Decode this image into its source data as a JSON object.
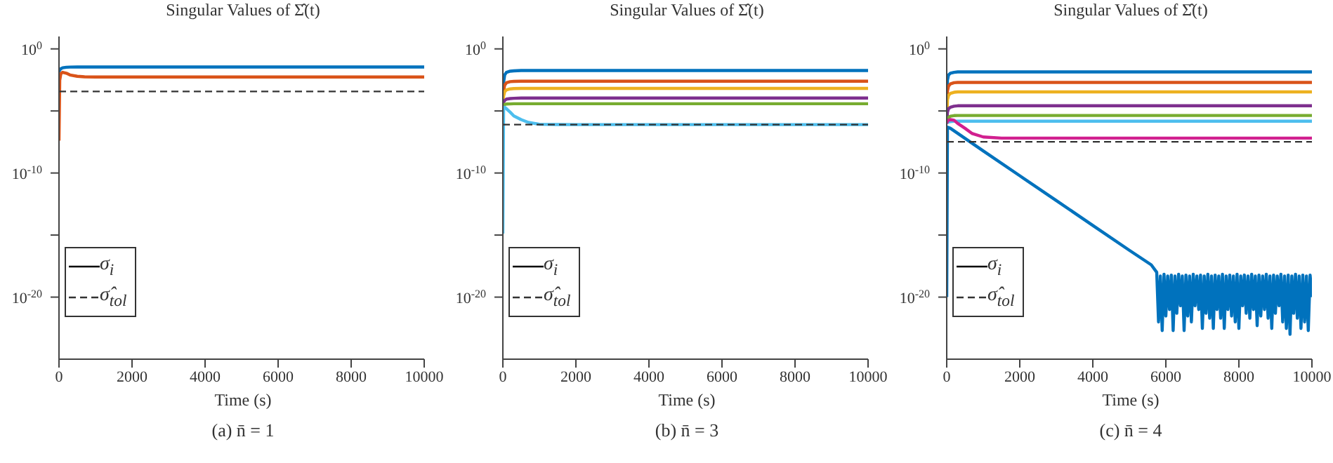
{
  "chart_data": [
    {
      "type": "line",
      "title": "Singular Values of Σ̂(t)",
      "xlabel": "Time (s)",
      "annotations": [
        "(a) n̄ = 1"
      ],
      "log": true,
      "legend": "bottom left",
      "xlim": [
        0,
        10000
      ],
      "xticks": [
        0,
        2000,
        4000,
        6000,
        8000,
        10000
      ],
      "ylim": [
        1e-25,
        10
      ],
      "yticks": [
        {
          "value": 1,
          "label": "10$^{0}$"
        },
        {
          "value": 1e-05,
          "label": null
        },
        {
          "value": 1e-10,
          "label": "10$^{-10}$"
        },
        {
          "value": 1e-15,
          "label": null
        },
        {
          "value": 1e-20,
          "label": "10$^{-20}$"
        }
      ],
      "x": [
        0,
        20,
        50,
        100,
        200,
        300,
        500,
        700,
        1000,
        1500,
        2000,
        4000,
        6000,
        8000,
        10000
      ],
      "series": [
        {
          "color": "#0072bd",
          "values": [
            0.014,
            0.02,
            0.025,
            0.03,
            0.033,
            0.034,
            0.035,
            0.035,
            0.035,
            0.035,
            0.035,
            0.035,
            0.035,
            0.035,
            0.035
          ]
        },
        {
          "color": "#d95319",
          "values": [
            4e-08,
            0.003,
            0.01,
            0.013,
            0.011,
            0.008,
            0.0062,
            0.0056,
            0.0054,
            0.0054,
            0.0054,
            0.0054,
            0.0054,
            0.0054,
            0.0054
          ]
        },
        {
          "name": "σ$_{i}$",
          "color": "#000000",
          "values": [
            null,
            null,
            null,
            null,
            null,
            null,
            null,
            null,
            null,
            null,
            null,
            null,
            null,
            null,
            null
          ]
        },
        {
          "name": "σ̂$_{tol}$",
          "color": "#333333",
          "line_style": "dashed",
          "values": [
            0.00037,
            0.00037,
            0.00037,
            0.00037,
            0.00037,
            0.00037,
            0.00037,
            0.00037,
            0.00037,
            0.00037,
            0.00037,
            0.00037,
            0.00037,
            0.00037,
            0.00037
          ]
        }
      ]
    },
    {
      "type": "line",
      "title": "Singular Values of Σ̂(t)",
      "xlabel": "Time (s)",
      "annotations": [
        "(b) n̄ = 3"
      ],
      "log": true,
      "legend": "bottom left",
      "xlim": [
        0,
        10000
      ],
      "xticks": [
        0,
        2000,
        4000,
        6000,
        8000,
        10000
      ],
      "ylim": [
        1e-25,
        10
      ],
      "yticks": [
        {
          "value": 1,
          "label": "10$^{0}$"
        },
        {
          "value": 1e-05,
          "label": null
        },
        {
          "value": 1e-10,
          "label": "10$^{-10}$"
        },
        {
          "value": 1e-15,
          "label": null
        },
        {
          "value": 1e-20,
          "label": "10$^{-20}$"
        }
      ],
      "x": [
        0,
        20,
        50,
        100,
        200,
        300,
        500,
        700,
        1000,
        1500,
        2000,
        4000,
        6000,
        8000,
        10000
      ],
      "series": [
        {
          "color": "#0072bd",
          "values": [
            3e-05,
            0.002,
            0.008,
            0.013,
            0.016,
            0.017,
            0.018,
            0.018,
            0.018,
            0.018,
            0.018,
            0.018,
            0.018,
            0.018,
            0.018
          ]
        },
        {
          "color": "#d95319",
          "values": [
            3e-05,
            0.0004,
            0.0012,
            0.0019,
            0.0023,
            0.0024,
            0.0025,
            0.0025,
            0.0025,
            0.0025,
            0.0025,
            0.0025,
            0.0025,
            0.0025,
            0.0025
          ]
        },
        {
          "color": "#edb120",
          "values": [
            3e-05,
            0.00015,
            0.00035,
            0.0005,
            0.0006,
            0.00064,
            0.00066,
            0.00066,
            0.00066,
            0.00066,
            0.00066,
            0.00066,
            0.00066,
            0.00066,
            0.00066
          ]
        },
        {
          "color": "#7e2f8e",
          "values": [
            3e-05,
            5e-05,
            7e-05,
            9e-05,
            0.0001,
            0.000105,
            0.00011,
            0.00011,
            0.00011,
            0.00011,
            0.00011,
            0.00011,
            0.00011,
            0.00011,
            0.00011
          ]
        },
        {
          "color": "#77ac30",
          "values": [
            3e-05,
            3.2e-05,
            3.4e-05,
            3.6e-05,
            3.7e-05,
            3.8e-05,
            3.8e-05,
            3.8e-05,
            3.8e-05,
            3.8e-05,
            3.8e-05,
            3.8e-05,
            3.8e-05,
            3.8e-05,
            3.8e-05
          ]
        },
        {
          "color": "#4dbeee",
          "values": [
            1.3e-15,
            2e-05,
            2e-05,
            1.5e-05,
            8e-06,
            4e-06,
            2e-06,
            1.2e-06,
            8.5e-07,
            8e-07,
            7.9e-07,
            7.9e-07,
            7.9e-07,
            7.9e-07,
            7.9e-07
          ]
        },
        {
          "name": "σ$_{i}$",
          "color": "#000000",
          "values": [
            null,
            null,
            null,
            null,
            null,
            null,
            null,
            null,
            null,
            null,
            null,
            null,
            null,
            null,
            null
          ]
        },
        {
          "name": "σ̂$_{tol}$",
          "color": "#333333",
          "line_style": "dashed",
          "values": [
            8e-07,
            8e-07,
            8e-07,
            8e-07,
            8e-07,
            8e-07,
            8e-07,
            8e-07,
            8e-07,
            8e-07,
            8e-07,
            8e-07,
            8e-07,
            8e-07,
            8e-07
          ]
        }
      ]
    },
    {
      "type": "line",
      "title": "Singular Values of Σ̂(t)",
      "xlabel": "Time (s)",
      "annotations": [
        "(c) n̄ = 4"
      ],
      "log": true,
      "legend": "bottom left",
      "xlim": [
        0,
        10000
      ],
      "xticks": [
        0,
        2000,
        4000,
        6000,
        8000,
        10000
      ],
      "ylim": [
        1e-25,
        10
      ],
      "yticks": [
        {
          "value": 1,
          "label": "10$^{0}$"
        },
        {
          "value": 1e-05,
          "label": null
        },
        {
          "value": 1e-10,
          "label": "10$^{-10}$"
        },
        {
          "value": 1e-15,
          "label": null
        },
        {
          "value": 1e-20,
          "label": "10$^{-20}$"
        }
      ],
      "x": [
        0,
        20,
        50,
        100,
        200,
        300,
        500,
        700,
        1000,
        1500,
        2000,
        4000,
        6000,
        8000,
        10000
      ],
      "series": [
        {
          "color": "#0072bd",
          "values": [
            1e-06,
            0.003,
            0.008,
            0.011,
            0.013,
            0.014,
            0.014,
            0.014,
            0.014,
            0.014,
            0.014,
            0.014,
            0.014,
            0.014,
            0.014
          ]
        },
        {
          "color": "#d95319",
          "values": [
            1e-06,
            0.0004,
            0.001,
            0.0015,
            0.0019,
            0.002,
            0.002,
            0.002,
            0.002,
            0.002,
            0.002,
            0.002,
            0.002,
            0.002,
            0.002
          ]
        },
        {
          "color": "#edb120",
          "values": [
            1e-06,
            8e-05,
            0.00018,
            0.00026,
            0.00032,
            0.00034,
            0.00034,
            0.00034,
            0.00034,
            0.00034,
            0.00034,
            0.00034,
            0.00034,
            0.00034,
            0.00034
          ]
        },
        {
          "color": "#7e2f8e",
          "values": [
            1e-06,
            8e-06,
            1.5e-05,
            2e-05,
            2.4e-05,
            2.6e-05,
            2.6e-05,
            2.6e-05,
            2.6e-05,
            2.6e-05,
            2.6e-05,
            2.6e-05,
            2.6e-05,
            2.6e-05,
            2.6e-05
          ]
        },
        {
          "color": "#77ac30",
          "values": [
            1e-06,
            2e-06,
            3e-06,
            3.8e-06,
            4.2e-06,
            4.3e-06,
            4.3e-06,
            4.3e-06,
            4.3e-06,
            4.3e-06,
            4.3e-06,
            4.3e-06,
            4.3e-06,
            4.3e-06,
            4.3e-06
          ]
        },
        {
          "color": "#4dbeee",
          "values": [
            1e-06,
            1.2e-06,
            1.3e-06,
            1.4e-06,
            1.5e-06,
            1.5e-06,
            1.5e-06,
            1.5e-06,
            1.5e-06,
            1.5e-06,
            1.5e-06,
            1.5e-06,
            1.5e-06,
            1.5e-06,
            1.5e-06
          ]
        },
        {
          "color": "#d1208f",
          "values": [
            1e-06,
            1.5e-06,
            1.8e-06,
            2e-06,
            1.8e-06,
            1e-06,
            4e-07,
            1.5e-07,
            8e-08,
            6.5e-08,
            6.5e-08,
            6.5e-08,
            6.5e-08,
            6.5e-08,
            6.5e-08
          ]
        },
        {
          "color": "#0072bd",
          "x": [
            0,
            20,
            100,
            1000,
            2000,
            3000,
            4000,
            5000,
            5600,
            5750,
            5800,
            5850,
            5900,
            5950,
            6000,
            6050,
            6100,
            6150,
            6200,
            6250,
            6300,
            6350,
            6400,
            6450,
            6500,
            6550,
            6600,
            6650,
            6700,
            6750,
            6800,
            6850,
            6900,
            6950,
            7000,
            7050,
            7100,
            7150,
            7200,
            7250,
            7300,
            7350,
            7400,
            7450,
            7500,
            7550,
            7600,
            7650,
            7700,
            7750,
            7800,
            7850,
            7900,
            7950,
            8000,
            8050,
            8100,
            8150,
            8200,
            8250,
            8300,
            8350,
            8400,
            8450,
            8500,
            8550,
            8600,
            8650,
            8700,
            8750,
            8800,
            8850,
            8900,
            8950,
            9000,
            9050,
            9100,
            9150,
            9200,
            9250,
            9300,
            9350,
            9400,
            9450,
            9500,
            9550,
            9600,
            9650,
            9700,
            9750,
            9800,
            9850,
            9900,
            9950,
            10000
          ],
          "values": [
            1e-20,
            5e-07,
            4e-07,
            6e-09,
            6e-11,
            6e-13,
            6e-15,
            6e-17,
            4e-18,
            1e-18,
            1e-22,
            5e-19,
            2e-23,
            7e-19,
            3e-22,
            5e-19,
            1e-21,
            6e-19,
            2e-23,
            5e-19,
            5e-22,
            7e-19,
            2e-21,
            5e-19,
            2e-23,
            6e-19,
            3e-22,
            5e-19,
            1e-22,
            7e-19,
            2e-21,
            5e-19,
            1e-21,
            6e-19,
            3e-23,
            5e-19,
            5e-22,
            7e-19,
            2e-22,
            5e-19,
            3e-23,
            6e-19,
            1e-21,
            5e-19,
            2e-22,
            7e-19,
            3e-23,
            5e-19,
            1e-21,
            6e-19,
            3e-22,
            5e-19,
            1e-22,
            7e-19,
            3e-23,
            5e-19,
            2e-21,
            6e-19,
            5e-22,
            5e-19,
            2e-22,
            7e-19,
            1e-21,
            5e-19,
            5e-23,
            6e-19,
            3e-22,
            5e-19,
            1e-21,
            7e-19,
            2e-22,
            5e-19,
            3e-23,
            6e-19,
            5e-22,
            5e-19,
            2e-21,
            7e-19,
            1e-22,
            5e-19,
            3e-23,
            6e-19,
            1e-23,
            5e-19,
            5e-22,
            7e-19,
            2e-22,
            5e-19,
            3e-23,
            6e-19,
            1e-22,
            5e-19,
            2e-23,
            6e-19,
            1e-20
          ]
        },
        {
          "name": "σ$_{i}$",
          "color": "#000000",
          "values": [
            null,
            null,
            null,
            null,
            null,
            null,
            null,
            null,
            null,
            null,
            null,
            null,
            null,
            null,
            null
          ]
        },
        {
          "name": "σ̂$_{tol}$",
          "color": "#333333",
          "line_style": "dashed",
          "values": [
            3.3e-08,
            3.3e-08,
            3.3e-08,
            3.3e-08,
            3.3e-08,
            3.3e-08,
            3.3e-08,
            3.3e-08,
            3.3e-08,
            3.3e-08,
            3.3e-08,
            3.3e-08,
            3.3e-08,
            3.3e-08,
            3.3e-08
          ]
        }
      ]
    }
  ]
}
